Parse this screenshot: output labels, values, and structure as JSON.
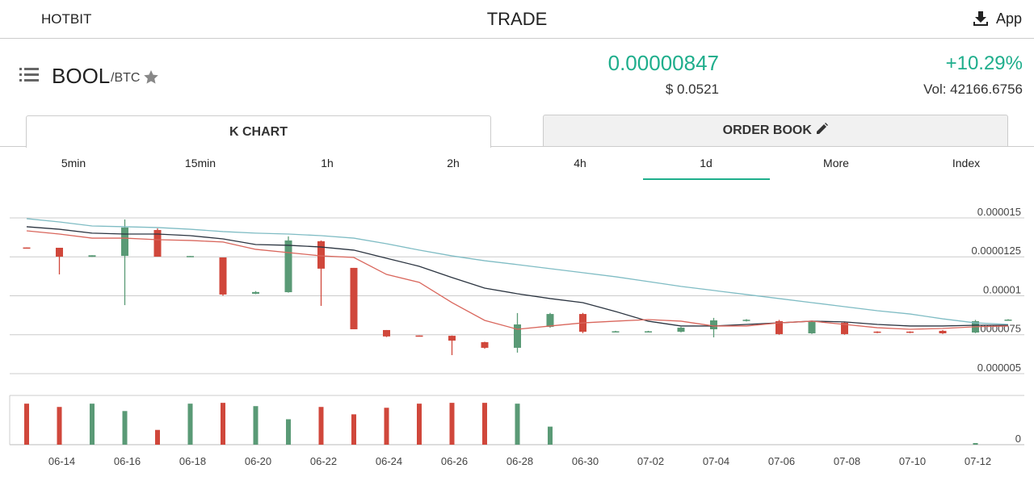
{
  "header": {
    "brand": "HOTBIT",
    "title": "TRADE",
    "app": "App"
  },
  "ticker": {
    "symbol": "BOOL",
    "pair": "/BTC",
    "price": "0.00000847",
    "usd": "$ 0.0521",
    "change": "+10.29%",
    "volume": "Vol: 42166.6756"
  },
  "tabs": [
    "K CHART",
    "ORDER BOOK"
  ],
  "intervals": [
    "5min",
    "15min",
    "1h",
    "2h",
    "4h",
    "1d",
    "More",
    "Index"
  ],
  "chart_data": {
    "type": "candlestick",
    "categories": [
      null,
      "06-14",
      null,
      "06-16",
      null,
      "06-18",
      null,
      "06-20",
      null,
      "06-22",
      null,
      "06-24",
      null,
      "06-26",
      null,
      "06-28",
      null,
      "06-30",
      null,
      "07-02",
      null,
      "07-04",
      null,
      "07-06",
      null,
      "07-08",
      null,
      "07-10",
      null,
      "07-12",
      null
    ],
    "open": [
      1.31e-05,
      1.308e-05,
      1.25e-05,
      1.256e-05,
      1.422e-05,
      1.25e-05,
      1.246e-05,
      1.013e-05,
      1.023e-05,
      1.35e-05,
      1.179e-05,
      7.8e-06,
      7.45e-06,
      7.43e-06,
      7.02e-06,
      6.66e-06,
      8e-06,
      8.83e-06,
      7.68e-06,
      7.68e-06,
      7.69e-06,
      7.85e-06,
      8.38e-06,
      8.37e-06,
      7.59e-06,
      8.27e-06,
      7.7e-06,
      7.7e-06,
      7.75e-06,
      7.64e-06,
      8.42e-06
    ],
    "high": [
      1.31e-05,
      1.308e-05,
      1.26e-05,
      1.49e-05,
      1.433e-05,
      1.255e-05,
      1.246e-05,
      1.03e-05,
      1.381e-05,
      1.355e-05,
      1.179e-05,
      7.8e-06,
      7.45e-06,
      7.45e-06,
      7.05e-06,
      8.89e-06,
      8.9e-06,
      8.9e-06,
      7.75e-06,
      7.75e-06,
      8e-06,
      8.58e-06,
      8.5e-06,
      8.45e-06,
      8.4e-06,
      8.3e-06,
      7.72e-06,
      7.72e-06,
      7.8e-06,
      8.45e-06,
      8.5e-06
    ],
    "low": [
      1.305e-05,
      1.137e-05,
      1.25e-05,
      9.4e-06,
      1.251e-05,
      1.25e-05,
      1e-05,
      1.01e-05,
      1.02e-05,
      9.35e-06,
      7.85e-06,
      7.35e-06,
      7.38e-06,
      6.19e-06,
      6.6e-06,
      6.35e-06,
      7.95e-06,
      7.6e-06,
      7.65e-06,
      7.65e-06,
      7.65e-06,
      7.33e-06,
      8.35e-06,
      7.5e-06,
      7.55e-06,
      7.5e-06,
      7.6e-06,
      7.6e-06,
      7.55e-06,
      7.6e-06,
      8.4e-06
    ],
    "close": [
      1.305e-05,
      1.251e-05,
      1.26e-05,
      1.438e-05,
      1.251e-05,
      1.255e-05,
      1.008e-05,
      1.024e-05,
      1.355e-05,
      1.174e-05,
      7.85e-06,
      7.39e-06,
      7.4e-06,
      7.12e-06,
      6.66e-06,
      8.16e-06,
      8.83e-06,
      7.69e-06,
      7.72e-06,
      7.72e-06,
      7.95e-06,
      8.42e-06,
      8.46e-06,
      7.54e-06,
      8.32e-06,
      7.54e-06,
      7.64e-06,
      7.64e-06,
      7.59e-06,
      8.37e-06,
      8.47e-06
    ],
    "up_color": "#5a9a76",
    "down_color": "#d0473b",
    "series": [
      {
        "color": "#7fbcc4",
        "values": [
          1.495e-05,
          1.474e-05,
          1.448e-05,
          1.443e-05,
          1.438e-05,
          1.427e-05,
          1.412e-05,
          1.402e-05,
          1.396e-05,
          1.386e-05,
          1.37e-05,
          1.334e-05,
          1.293e-05,
          1.256e-05,
          1.225e-05,
          1.2e-05,
          1.174e-05,
          1.148e-05,
          1.122e-05,
          1.091e-05,
          1.06e-05,
          1.034e-05,
          1.008e-05,
          9.82e-06,
          9.56e-06,
          9.3e-06,
          9.04e-06,
          8.83e-06,
          8.52e-06,
          8.26e-06,
          8.16e-06
        ]
      },
      {
        "color": "#2b3440",
        "values": [
          1.443e-05,
          1.427e-05,
          1.402e-05,
          1.396e-05,
          1.396e-05,
          1.386e-05,
          1.365e-05,
          1.329e-05,
          1.324e-05,
          1.313e-05,
          1.293e-05,
          1.241e-05,
          1.189e-05,
          1.117e-05,
          1.049e-05,
          1.013e-05,
          9.82e-06,
          9.56e-06,
          8.99e-06,
          8.37e-06,
          8.06e-06,
          8.06e-06,
          8.16e-06,
          8.26e-06,
          8.37e-06,
          8.32e-06,
          8.16e-06,
          8.06e-06,
          8.06e-06,
          8.11e-06,
          8.11e-06
        ]
      },
      {
        "color": "#d9665c",
        "values": [
          1.417e-05,
          1.396e-05,
          1.37e-05,
          1.37e-05,
          1.36e-05,
          1.355e-05,
          1.345e-05,
          1.298e-05,
          1.277e-05,
          1.256e-05,
          1.246e-05,
          1.137e-05,
          1.086e-05,
          9.56e-06,
          8.42e-06,
          7.85e-06,
          8.06e-06,
          8.26e-06,
          8.37e-06,
          8.47e-06,
          8.37e-06,
          8.06e-06,
          8.06e-06,
          8.26e-06,
          8.37e-06,
          8.16e-06,
          7.95e-06,
          7.85e-06,
          7.9e-06,
          8.01e-06,
          8.06e-06
        ]
      }
    ],
    "ylim": [
      5e-06,
      1.65e-05
    ],
    "yticks": [
      1.5e-05,
      1.25e-05,
      1e-05,
      7.5e-06,
      5e-06
    ],
    "grid": true,
    "volume": {
      "values": [
        50,
        46,
        50,
        41,
        18,
        50,
        51,
        47,
        31,
        46,
        37,
        45,
        50,
        51,
        51,
        50,
        22,
        0,
        0,
        0,
        0,
        0,
        0,
        0,
        0,
        0,
        0,
        0,
        0,
        2,
        0
      ],
      "ylim": [
        0,
        60
      ],
      "yticks": [
        0
      ]
    }
  }
}
